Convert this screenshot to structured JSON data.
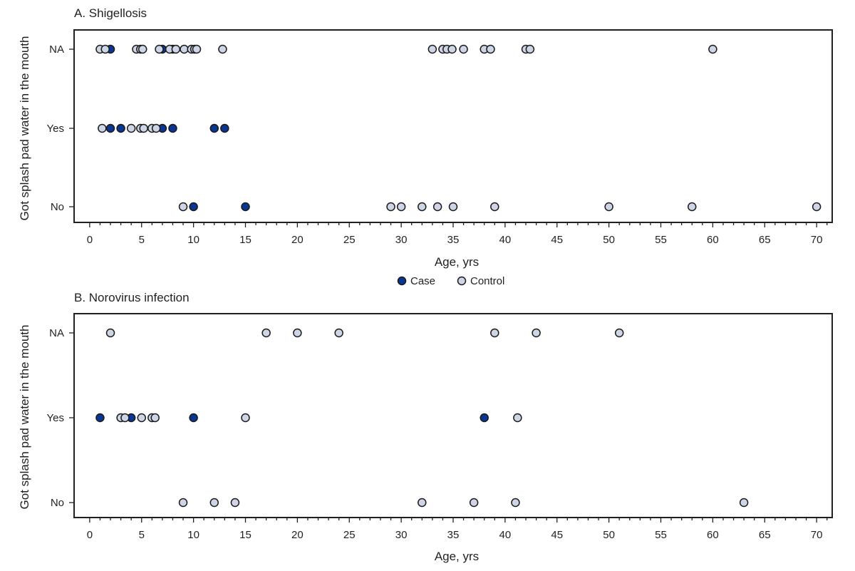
{
  "legend": {
    "items": [
      {
        "label": "Case",
        "color": "#0a3591"
      },
      {
        "label": "Control",
        "color": "#cdd5e6"
      }
    ]
  },
  "chart_data": [
    {
      "type": "scatter",
      "title": "A. Shigellosis",
      "xlabel": "Age, yrs",
      "ylabel": "Got splash pad water in the mouth",
      "xlim": [
        -1.5,
        71.5
      ],
      "x_ticks": [
        0,
        5,
        10,
        15,
        20,
        25,
        30,
        35,
        40,
        45,
        50,
        55,
        60,
        65,
        70
      ],
      "y_categories": [
        "No",
        "Yes",
        "NA"
      ],
      "legend_position": "below",
      "series": [
        {
          "name": "Case",
          "points": [
            {
              "x": 2,
              "y": "NA"
            },
            {
              "x": 7,
              "y": "NA"
            },
            {
              "x": 8,
              "y": "NA"
            },
            {
              "x": 2,
              "y": "Yes"
            },
            {
              "x": 3,
              "y": "Yes"
            },
            {
              "x": 7,
              "y": "Yes"
            },
            {
              "x": 8,
              "y": "Yes"
            },
            {
              "x": 12,
              "y": "Yes"
            },
            {
              "x": 13,
              "y": "Yes"
            },
            {
              "x": 10,
              "y": "No"
            },
            {
              "x": 15,
              "y": "No"
            }
          ]
        },
        {
          "name": "Control",
          "points": [
            {
              "x": 1,
              "y": "NA"
            },
            {
              "x": 1.5,
              "y": "NA"
            },
            {
              "x": 4.5,
              "y": "NA"
            },
            {
              "x": 4.9,
              "y": "NA"
            },
            {
              "x": 5.1,
              "y": "NA"
            },
            {
              "x": 6.7,
              "y": "NA"
            },
            {
              "x": 7.7,
              "y": "NA"
            },
            {
              "x": 8.3,
              "y": "NA"
            },
            {
              "x": 9.1,
              "y": "NA"
            },
            {
              "x": 9.8,
              "y": "NA"
            },
            {
              "x": 10.1,
              "y": "NA"
            },
            {
              "x": 10.3,
              "y": "NA"
            },
            {
              "x": 12.8,
              "y": "NA"
            },
            {
              "x": 33,
              "y": "NA"
            },
            {
              "x": 34,
              "y": "NA"
            },
            {
              "x": 34.4,
              "y": "NA"
            },
            {
              "x": 34.9,
              "y": "NA"
            },
            {
              "x": 36,
              "y": "NA"
            },
            {
              "x": 38,
              "y": "NA"
            },
            {
              "x": 38.6,
              "y": "NA"
            },
            {
              "x": 42,
              "y": "NA"
            },
            {
              "x": 42.4,
              "y": "NA"
            },
            {
              "x": 60,
              "y": "NA"
            },
            {
              "x": 1.2,
              "y": "Yes"
            },
            {
              "x": 4,
              "y": "Yes"
            },
            {
              "x": 4.9,
              "y": "Yes"
            },
            {
              "x": 5.2,
              "y": "Yes"
            },
            {
              "x": 6,
              "y": "Yes"
            },
            {
              "x": 6.4,
              "y": "Yes"
            },
            {
              "x": 9,
              "y": "No"
            },
            {
              "x": 29,
              "y": "No"
            },
            {
              "x": 30,
              "y": "No"
            },
            {
              "x": 32,
              "y": "No"
            },
            {
              "x": 33.5,
              "y": "No"
            },
            {
              "x": 35,
              "y": "No"
            },
            {
              "x": 39,
              "y": "No"
            },
            {
              "x": 50,
              "y": "No"
            },
            {
              "x": 58,
              "y": "No"
            },
            {
              "x": 70,
              "y": "No"
            }
          ]
        }
      ]
    },
    {
      "type": "scatter",
      "title": "B. Norovirus infection",
      "xlabel": "Age, yrs",
      "ylabel": "Got splash pad water in the mouth",
      "xlim": [
        -1.5,
        71.5
      ],
      "x_ticks": [
        0,
        5,
        10,
        15,
        20,
        25,
        30,
        35,
        40,
        45,
        50,
        55,
        60,
        65,
        70
      ],
      "y_categories": [
        "No",
        "Yes",
        "NA"
      ],
      "series": [
        {
          "name": "Case",
          "points": [
            {
              "x": 1,
              "y": "Yes"
            },
            {
              "x": 4,
              "y": "Yes"
            },
            {
              "x": 10,
              "y": "Yes"
            },
            {
              "x": 38,
              "y": "Yes"
            }
          ]
        },
        {
          "name": "Control",
          "points": [
            {
              "x": 2,
              "y": "NA"
            },
            {
              "x": 17,
              "y": "NA"
            },
            {
              "x": 20,
              "y": "NA"
            },
            {
              "x": 24,
              "y": "NA"
            },
            {
              "x": 39,
              "y": "NA"
            },
            {
              "x": 43,
              "y": "NA"
            },
            {
              "x": 51,
              "y": "NA"
            },
            {
              "x": 3,
              "y": "Yes"
            },
            {
              "x": 3.4,
              "y": "Yes"
            },
            {
              "x": 5,
              "y": "Yes"
            },
            {
              "x": 6,
              "y": "Yes"
            },
            {
              "x": 6.3,
              "y": "Yes"
            },
            {
              "x": 15,
              "y": "Yes"
            },
            {
              "x": 41.2,
              "y": "Yes"
            },
            {
              "x": 9,
              "y": "No"
            },
            {
              "x": 12,
              "y": "No"
            },
            {
              "x": 14,
              "y": "No"
            },
            {
              "x": 32,
              "y": "No"
            },
            {
              "x": 37,
              "y": "No"
            },
            {
              "x": 41,
              "y": "No"
            },
            {
              "x": 63,
              "y": "No"
            }
          ]
        }
      ]
    }
  ]
}
